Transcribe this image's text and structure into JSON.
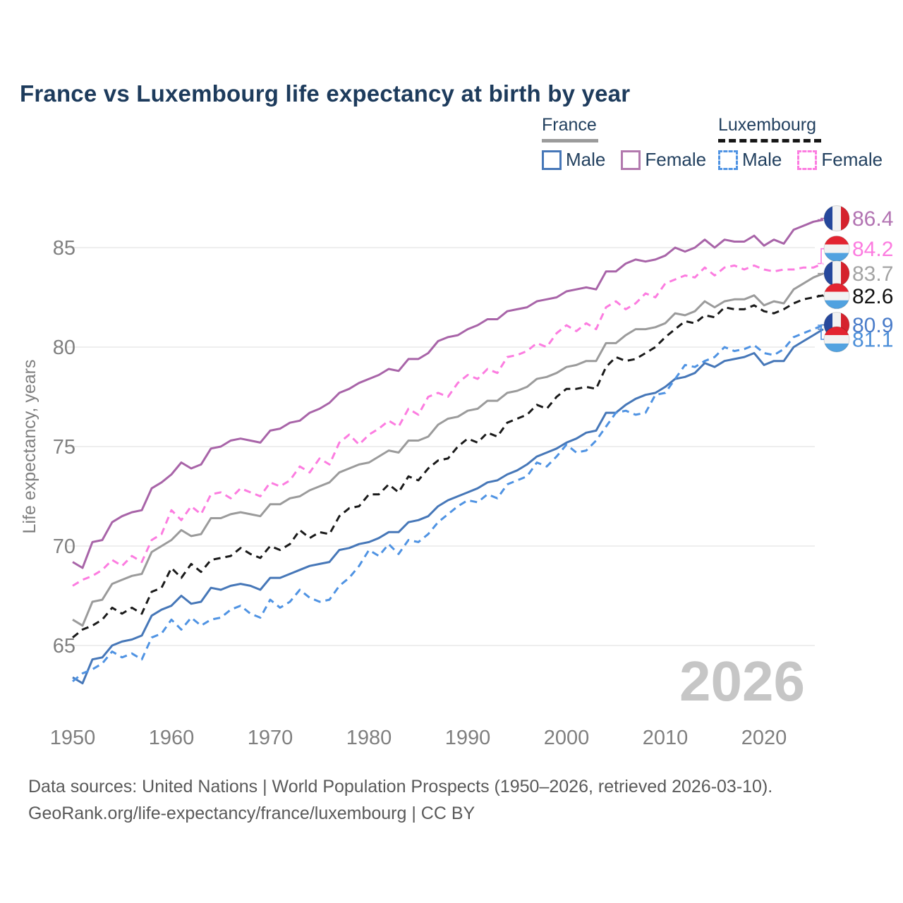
{
  "title": "France vs Luxembourg life expectancy at birth by year",
  "watermark": "2026",
  "footer": {
    "line1": "Data sources: United Nations | World Population Prospects (1950–2026, retrieved 2026-03-10).",
    "line2": "GeoRank.org/life-expectancy/france/luxembourg | CC BY"
  },
  "legend": {
    "groups": [
      {
        "label": "France",
        "style": "solid",
        "underline_color": "#9b9b9b",
        "items": [
          {
            "label": "Male",
            "color": "#4677b8",
            "dash": "solid"
          },
          {
            "label": "Female",
            "color": "#b279ae",
            "dash": "solid"
          }
        ]
      },
      {
        "label": "Luxembourg",
        "style": "dashed",
        "underline_color": "#161616",
        "items": [
          {
            "label": "Male",
            "color": "#4f93e3",
            "dash": "dashed"
          },
          {
            "label": "Female",
            "color": "#fc7ce0",
            "dash": "dashed"
          }
        ]
      }
    ]
  },
  "chart_data": {
    "type": "line",
    "title": "France vs Luxembourg life expectancy at birth by year",
    "xlabel": "",
    "ylabel": "Life expectancy, years",
    "xlim": [
      1950,
      2026
    ],
    "ylim": [
      62.5,
      87
    ],
    "x_ticks": [
      1950,
      1960,
      1970,
      1980,
      1990,
      2000,
      2010,
      2020
    ],
    "y_ticks": [
      65,
      70,
      75,
      80,
      85
    ],
    "grid": "horizontal",
    "legend_position": "top-right",
    "years": [
      1950,
      1951,
      1952,
      1953,
      1954,
      1955,
      1956,
      1957,
      1958,
      1959,
      1960,
      1961,
      1962,
      1963,
      1964,
      1965,
      1966,
      1967,
      1968,
      1969,
      1970,
      1971,
      1972,
      1973,
      1974,
      1975,
      1976,
      1977,
      1978,
      1979,
      1980,
      1981,
      1982,
      1983,
      1984,
      1985,
      1986,
      1987,
      1988,
      1989,
      1990,
      1991,
      1992,
      1993,
      1994,
      1995,
      1996,
      1997,
      1998,
      1999,
      2000,
      2001,
      2002,
      2003,
      2004,
      2005,
      2006,
      2007,
      2008,
      2009,
      2010,
      2011,
      2012,
      2013,
      2014,
      2015,
      2016,
      2017,
      2018,
      2019,
      2020,
      2021,
      2022,
      2023,
      2024,
      2025,
      2026
    ],
    "series": [
      {
        "id": "france-female",
        "country": "France",
        "sex": "Female",
        "color": "#a864a8",
        "label_color": "#b273b2",
        "dash": "solid",
        "flag": "france",
        "end_label": "86.4",
        "values": [
          69.2,
          68.9,
          70.2,
          70.3,
          71.2,
          71.5,
          71.7,
          71.8,
          72.9,
          73.2,
          73.6,
          74.2,
          73.9,
          74.1,
          74.9,
          75.0,
          75.3,
          75.4,
          75.3,
          75.2,
          75.8,
          75.9,
          76.2,
          76.3,
          76.7,
          76.9,
          77.2,
          77.7,
          77.9,
          78.2,
          78.4,
          78.6,
          78.9,
          78.8,
          79.4,
          79.4,
          79.7,
          80.3,
          80.5,
          80.6,
          80.9,
          81.1,
          81.4,
          81.4,
          81.8,
          81.9,
          82.0,
          82.3,
          82.4,
          82.5,
          82.8,
          82.9,
          83.0,
          82.9,
          83.8,
          83.8,
          84.2,
          84.4,
          84.3,
          84.4,
          84.6,
          85.0,
          84.8,
          85.0,
          85.4,
          85.0,
          85.4,
          85.3,
          85.3,
          85.6,
          85.1,
          85.4,
          85.2,
          85.9,
          86.1,
          86.3,
          86.4
        ]
      },
      {
        "id": "luxembourg-female",
        "country": "Luxembourg",
        "sex": "Female",
        "color": "#fc7ce0",
        "label_color": "#fc7ce0",
        "dash": "dashed",
        "flag": "luxembourg",
        "end_label": "84.2",
        "values": [
          68.0,
          68.3,
          68.5,
          68.8,
          69.3,
          69.0,
          69.5,
          69.2,
          70.3,
          70.6,
          71.8,
          71.3,
          72.0,
          71.6,
          72.6,
          72.7,
          72.4,
          72.9,
          72.7,
          72.5,
          73.2,
          73.0,
          73.3,
          74.0,
          73.7,
          74.4,
          74.1,
          75.2,
          75.6,
          75.1,
          75.6,
          75.9,
          76.3,
          76.0,
          76.9,
          76.6,
          77.5,
          77.7,
          77.5,
          78.2,
          78.6,
          78.4,
          78.9,
          78.7,
          79.5,
          79.6,
          79.8,
          80.2,
          80.0,
          80.7,
          81.1,
          80.8,
          81.2,
          80.9,
          82.0,
          82.3,
          81.9,
          82.2,
          82.7,
          82.5,
          83.2,
          83.4,
          83.6,
          83.5,
          84.0,
          83.6,
          84.0,
          84.1,
          83.9,
          84.1,
          83.9,
          83.8,
          83.9,
          83.9,
          84.0,
          84.0,
          84.2
        ]
      },
      {
        "id": "france-all",
        "country": "France",
        "sex": "All",
        "color": "#9b9b9b",
        "label_color": "#a3a3a3",
        "dash": "solid",
        "flag": "france",
        "end_label": "83.7",
        "values": [
          66.3,
          66.0,
          67.2,
          67.3,
          68.1,
          68.3,
          68.5,
          68.6,
          69.7,
          70.0,
          70.3,
          70.8,
          70.5,
          70.6,
          71.4,
          71.4,
          71.6,
          71.7,
          71.6,
          71.5,
          72.1,
          72.1,
          72.4,
          72.5,
          72.8,
          73.0,
          73.2,
          73.7,
          73.9,
          74.1,
          74.2,
          74.5,
          74.8,
          74.7,
          75.3,
          75.3,
          75.5,
          76.1,
          76.4,
          76.5,
          76.8,
          76.9,
          77.3,
          77.3,
          77.7,
          77.8,
          78.0,
          78.4,
          78.5,
          78.7,
          79.0,
          79.1,
          79.3,
          79.3,
          80.2,
          80.2,
          80.6,
          80.9,
          80.9,
          81.0,
          81.2,
          81.7,
          81.6,
          81.8,
          82.3,
          82.0,
          82.3,
          82.4,
          82.4,
          82.6,
          82.1,
          82.3,
          82.2,
          82.9,
          83.2,
          83.5,
          83.7
        ]
      },
      {
        "id": "luxembourg-all",
        "country": "Luxembourg",
        "sex": "All",
        "color": "#1a1a1a",
        "label_color": "#111111",
        "dash": "dashed",
        "flag": "luxembourg",
        "end_label": "82.6",
        "values": [
          65.4,
          65.8,
          66.0,
          66.3,
          66.9,
          66.6,
          66.9,
          66.6,
          67.7,
          67.9,
          68.9,
          68.4,
          69.1,
          68.7,
          69.3,
          69.4,
          69.5,
          69.9,
          69.6,
          69.4,
          70.0,
          69.8,
          70.1,
          70.8,
          70.4,
          70.7,
          70.6,
          71.5,
          71.9,
          72.0,
          72.6,
          72.6,
          73.1,
          72.7,
          73.5,
          73.3,
          73.9,
          74.3,
          74.4,
          75.0,
          75.4,
          75.2,
          75.7,
          75.5,
          76.2,
          76.4,
          76.6,
          77.1,
          76.9,
          77.5,
          77.9,
          77.9,
          78.0,
          77.9,
          79.0,
          79.5,
          79.3,
          79.4,
          79.7,
          80.0,
          80.5,
          80.9,
          81.3,
          81.2,
          81.6,
          81.5,
          82.0,
          81.9,
          81.9,
          82.1,
          81.8,
          81.7,
          81.9,
          82.2,
          82.4,
          82.5,
          82.6
        ]
      },
      {
        "id": "france-male",
        "country": "France",
        "sex": "Male",
        "color": "#4677b8",
        "label_color": "#4a7cc9",
        "dash": "solid",
        "flag": "france",
        "end_label": "80.9",
        "values": [
          63.4,
          63.1,
          64.3,
          64.4,
          65.0,
          65.2,
          65.3,
          65.5,
          66.5,
          66.8,
          67.0,
          67.5,
          67.1,
          67.2,
          67.9,
          67.8,
          68.0,
          68.1,
          68.0,
          67.8,
          68.4,
          68.4,
          68.6,
          68.8,
          69.0,
          69.1,
          69.2,
          69.8,
          69.9,
          70.1,
          70.2,
          70.4,
          70.7,
          70.7,
          71.2,
          71.3,
          71.5,
          72.0,
          72.3,
          72.5,
          72.7,
          72.9,
          73.2,
          73.3,
          73.6,
          73.8,
          74.1,
          74.5,
          74.7,
          74.9,
          75.2,
          75.4,
          75.7,
          75.8,
          76.7,
          76.7,
          77.1,
          77.4,
          77.6,
          77.7,
          78.0,
          78.4,
          78.5,
          78.7,
          79.2,
          79.0,
          79.3,
          79.4,
          79.5,
          79.7,
          79.1,
          79.3,
          79.3,
          80.0,
          80.3,
          80.6,
          80.9
        ]
      },
      {
        "id": "luxembourg-male",
        "country": "Luxembourg",
        "sex": "Male",
        "color": "#4f93e3",
        "label_color": "#4c8fd9",
        "dash": "dashed",
        "flag": "luxembourg",
        "end_label": "81.1",
        "values": [
          63.2,
          63.6,
          63.8,
          64.1,
          64.7,
          64.4,
          64.6,
          64.3,
          65.4,
          65.6,
          66.3,
          65.8,
          66.4,
          66.0,
          66.3,
          66.4,
          66.8,
          67.0,
          66.6,
          66.4,
          67.3,
          66.9,
          67.2,
          67.8,
          67.4,
          67.2,
          67.3,
          68.0,
          68.4,
          69.0,
          69.8,
          69.5,
          70.1,
          69.6,
          70.3,
          70.2,
          70.6,
          71.2,
          71.6,
          72.0,
          72.3,
          72.2,
          72.6,
          72.4,
          73.1,
          73.3,
          73.5,
          74.2,
          74.0,
          74.5,
          75.1,
          74.7,
          74.8,
          75.3,
          76.0,
          76.7,
          76.8,
          76.6,
          76.7,
          77.6,
          77.7,
          78.4,
          79.1,
          79.0,
          79.3,
          79.5,
          80.0,
          79.8,
          79.9,
          80.1,
          79.7,
          79.6,
          79.9,
          80.5,
          80.7,
          80.9,
          81.1
        ]
      }
    ]
  }
}
